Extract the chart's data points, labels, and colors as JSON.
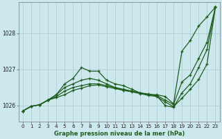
{
  "title": "Graphe pression niveau de la mer (hPa)",
  "background_color": "#cce8ed",
  "grid_color": "#b0cdd4",
  "line_color": "#1e5c1e",
  "xlim": [
    -0.5,
    23.5
  ],
  "ylim": [
    1025.55,
    1028.85
  ],
  "yticks": [
    1026,
    1027,
    1028
  ],
  "xticks": [
    0,
    1,
    2,
    3,
    4,
    5,
    6,
    7,
    8,
    9,
    10,
    11,
    12,
    13,
    14,
    15,
    16,
    17,
    18,
    19,
    20,
    21,
    22,
    23
  ],
  "series": [
    [
      1025.85,
      1025.98,
      1026.02,
      1026.15,
      1026.3,
      1026.6,
      1026.75,
      1027.05,
      1026.95,
      1026.95,
      1026.7,
      1026.6,
      1026.55,
      1026.45,
      1026.35,
      1026.3,
      1026.3,
      1026.25,
      1026.05,
      1027.5,
      1027.8,
      1028.2,
      1028.45,
      1028.72
    ],
    [
      1025.85,
      1025.98,
      1026.02,
      1026.15,
      1026.3,
      1026.5,
      1026.6,
      1026.7,
      1026.75,
      1026.7,
      1026.6,
      1026.5,
      1026.45,
      1026.4,
      1026.35,
      1026.32,
      1026.28,
      1026.15,
      1026.03,
      1026.65,
      1026.85,
      1027.3,
      1027.75,
      1028.72
    ],
    [
      1025.85,
      1025.98,
      1026.02,
      1026.15,
      1026.25,
      1026.4,
      1026.5,
      1026.55,
      1026.6,
      1026.6,
      1026.55,
      1026.5,
      1026.42,
      1026.4,
      1026.35,
      1026.3,
      1026.27,
      1026.0,
      1025.95,
      1026.35,
      1026.6,
      1027.05,
      1027.55,
      1028.72
    ],
    [
      1025.85,
      1025.98,
      1026.02,
      1026.15,
      1026.22,
      1026.3,
      1026.42,
      1026.48,
      1026.55,
      1026.57,
      1026.52,
      1026.47,
      1026.42,
      1026.38,
      1026.33,
      1026.28,
      1026.25,
      1026.1,
      1025.97,
      1026.2,
      1026.45,
      1026.72,
      1027.15,
      1028.72
    ]
  ]
}
